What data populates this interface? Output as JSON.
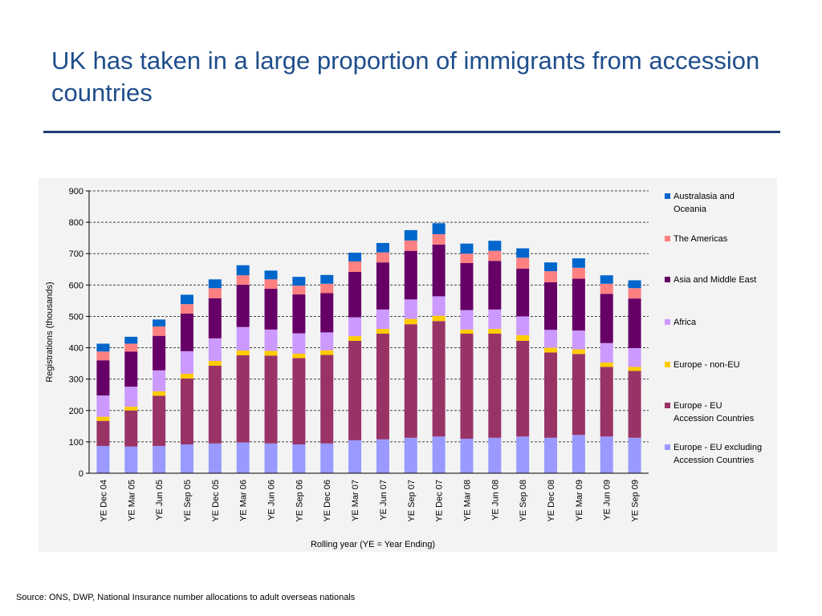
{
  "slide": {
    "title": "UK has taken in a large proportion of immigrants from accession countries",
    "source": "Source: ONS, DWP, National Insurance number allocations to adult overseas nationals"
  },
  "chart_data": {
    "type": "bar",
    "stacked": true,
    "title": "",
    "xlabel": "Rolling year (YE = Year Ending)",
    "ylabel": "Registrations (thousands)",
    "ylim": [
      0,
      900
    ],
    "yticks": [
      0,
      100,
      200,
      300,
      400,
      500,
      600,
      700,
      800,
      900
    ],
    "grid": "horizontal dashed",
    "legend_position": "right",
    "categories": [
      "YE Dec 04",
      "YE Mar 05",
      "YE Jun 05",
      "YE Sep 05",
      "YE Dec 05",
      "YE Mar 06",
      "YE Jun 06",
      "YE Sep 06",
      "YE Dec 06",
      "YE Mar 07",
      "YE Jun 07",
      "YE Sep 07",
      "YE Dec 07",
      "YE Mar 08",
      "YE Jun 08",
      "YE Sep 08",
      "YE Dec 08",
      "YE Mar 09",
      "YE Jun 09",
      "YE Sep 09"
    ],
    "series": [
      {
        "name": "Europe - EU excluding Accession Countries",
        "color": "#9999ff",
        "values": [
          87,
          85,
          87,
          92,
          95,
          98,
          95,
          92,
          95,
          105,
          108,
          113,
          117,
          110,
          113,
          117,
          113,
          122,
          117,
          113
        ]
      },
      {
        "name": "Europe - EU Accession Countries",
        "color": "#993366",
        "values": [
          80,
          115,
          160,
          210,
          248,
          278,
          280,
          275,
          282,
          317,
          337,
          362,
          368,
          335,
          332,
          305,
          272,
          258,
          222,
          213
        ]
      },
      {
        "name": "Europe - non-EU",
        "color": "#ffcc00",
        "values": [
          13,
          12,
          14,
          15,
          15,
          15,
          15,
          14,
          15,
          15,
          15,
          17,
          17,
          13,
          15,
          18,
          15,
          15,
          14,
          13
        ]
      },
      {
        "name": "Africa",
        "color": "#cc99ff",
        "values": [
          68,
          64,
          67,
          72,
          72,
          75,
          68,
          65,
          57,
          60,
          62,
          62,
          62,
          62,
          62,
          60,
          57,
          60,
          62,
          60
        ]
      },
      {
        "name": "Asia and Middle East",
        "color": "#660066",
        "values": [
          112,
          112,
          110,
          120,
          128,
          135,
          130,
          124,
          125,
          145,
          150,
          155,
          165,
          150,
          155,
          152,
          152,
          165,
          157,
          158
        ]
      },
      {
        "name": "The Americas",
        "color": "#ff8080",
        "values": [
          28,
          25,
          30,
          30,
          32,
          30,
          30,
          28,
          30,
          33,
          32,
          33,
          33,
          30,
          32,
          35,
          35,
          35,
          32,
          33
        ]
      },
      {
        "name": "Australasia and Oceania",
        "color": "#0066cc",
        "values": [
          25,
          22,
          22,
          30,
          28,
          32,
          28,
          28,
          28,
          28,
          30,
          33,
          35,
          32,
          32,
          30,
          28,
          30,
          27,
          25
        ]
      }
    ],
    "legend": [
      {
        "lines": [
          "Australasia and",
          "Oceania"
        ],
        "color": "#0066cc"
      },
      {
        "lines": [
          "The Americas"
        ],
        "color": "#ff8080"
      },
      {
        "lines": [
          "Asia and Middle East"
        ],
        "color": "#660066"
      },
      {
        "lines": [
          "Africa"
        ],
        "color": "#cc99ff"
      },
      {
        "lines": [
          "Europe - non-EU"
        ],
        "color": "#ffcc00"
      },
      {
        "lines": [
          "Europe - EU",
          "Accession Countries"
        ],
        "color": "#993366"
      },
      {
        "lines": [
          "Europe - EU excluding",
          "Accession Countries"
        ],
        "color": "#9999ff"
      }
    ]
  }
}
